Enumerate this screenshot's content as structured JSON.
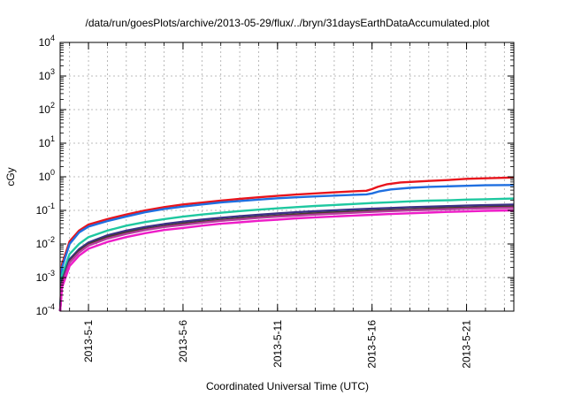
{
  "chart_data": {
    "type": "line",
    "title": "/data/run/goesPlots/archive/2013-05-29/flux/../bryn/31daysEarthDataAccumulated.plot",
    "xlabel": "Coordinated Universal Time (UTC)",
    "ylabel": "cGy",
    "y_scale": "log",
    "ylim": [
      0.0001,
      10000
    ],
    "xlim": [
      -1.5,
      22.5
    ],
    "x_origin_label": "2013-5-1",
    "y_ticks": [
      {
        "value": 0.0001,
        "base": "10",
        "exp": "-4"
      },
      {
        "value": 0.001,
        "base": "10",
        "exp": "-3"
      },
      {
        "value": 0.01,
        "base": "10",
        "exp": "-2"
      },
      {
        "value": 0.1,
        "base": "10",
        "exp": "-1"
      },
      {
        "value": 1,
        "base": "10",
        "exp": "0"
      },
      {
        "value": 10,
        "base": "10",
        "exp": "1"
      },
      {
        "value": 100,
        "base": "10",
        "exp": "2"
      },
      {
        "value": 1000,
        "base": "10",
        "exp": "3"
      },
      {
        "value": 10000,
        "base": "10",
        "exp": "4"
      }
    ],
    "x_ticks": [
      {
        "value": 0,
        "label": "2013-5-1"
      },
      {
        "value": 5,
        "label": "2013-5-6"
      },
      {
        "value": 10,
        "label": "2013-5-11"
      },
      {
        "value": 15,
        "label": "2013-5-16"
      },
      {
        "value": 20,
        "label": "2013-5-21"
      }
    ],
    "grid": true,
    "legend": "none",
    "series": [
      {
        "color": "#e8141c",
        "values": [
          [
            -1.5,
            0.0001
          ],
          [
            -1.4,
            0.0025
          ],
          [
            -1.0,
            0.012
          ],
          [
            -0.5,
            0.025
          ],
          [
            0,
            0.038
          ],
          [
            1,
            0.055
          ],
          [
            2,
            0.075
          ],
          [
            3,
            0.1
          ],
          [
            4,
            0.125
          ],
          [
            5,
            0.15
          ],
          [
            6,
            0.17
          ],
          [
            7,
            0.195
          ],
          [
            8,
            0.22
          ],
          [
            9,
            0.245
          ],
          [
            10,
            0.27
          ],
          [
            11,
            0.295
          ],
          [
            12,
            0.32
          ],
          [
            13,
            0.345
          ],
          [
            14,
            0.37
          ],
          [
            14.7,
            0.385
          ],
          [
            15,
            0.43
          ],
          [
            15.3,
            0.5
          ],
          [
            15.8,
            0.6
          ],
          [
            16.5,
            0.68
          ],
          [
            18,
            0.75
          ],
          [
            19,
            0.8
          ],
          [
            20,
            0.87
          ],
          [
            21,
            0.9
          ],
          [
            22.5,
            0.95
          ]
        ]
      },
      {
        "color": "#1f6fe0",
        "values": [
          [
            -1.5,
            0.0001
          ],
          [
            -1.4,
            0.002
          ],
          [
            -1.0,
            0.01
          ],
          [
            -0.5,
            0.022
          ],
          [
            0,
            0.033
          ],
          [
            1,
            0.048
          ],
          [
            2,
            0.066
          ],
          [
            3,
            0.088
          ],
          [
            4,
            0.11
          ],
          [
            5,
            0.13
          ],
          [
            6,
            0.15
          ],
          [
            7,
            0.172
          ],
          [
            8,
            0.19
          ],
          [
            9,
            0.21
          ],
          [
            10,
            0.23
          ],
          [
            11,
            0.245
          ],
          [
            12,
            0.26
          ],
          [
            13,
            0.275
          ],
          [
            14,
            0.29
          ],
          [
            14.7,
            0.3
          ],
          [
            15,
            0.32
          ],
          [
            15.4,
            0.37
          ],
          [
            16,
            0.42
          ],
          [
            17,
            0.47
          ],
          [
            18,
            0.5
          ],
          [
            19,
            0.52
          ],
          [
            20,
            0.54
          ],
          [
            21,
            0.56
          ],
          [
            22.5,
            0.57
          ]
        ]
      },
      {
        "color": "#1fc8a0",
        "values": [
          [
            -1.5,
            0.0001
          ],
          [
            -1.4,
            0.0012
          ],
          [
            -1.0,
            0.005
          ],
          [
            -0.5,
            0.01
          ],
          [
            0,
            0.016
          ],
          [
            1,
            0.025
          ],
          [
            2,
            0.035
          ],
          [
            3,
            0.045
          ],
          [
            4,
            0.055
          ],
          [
            5,
            0.065
          ],
          [
            6,
            0.075
          ],
          [
            7,
            0.085
          ],
          [
            8,
            0.095
          ],
          [
            9,
            0.105
          ],
          [
            10,
            0.115
          ],
          [
            11,
            0.125
          ],
          [
            12,
            0.135
          ],
          [
            13,
            0.145
          ],
          [
            14,
            0.155
          ],
          [
            15,
            0.165
          ],
          [
            16,
            0.175
          ],
          [
            17,
            0.185
          ],
          [
            18,
            0.195
          ],
          [
            19,
            0.2
          ],
          [
            20,
            0.21
          ],
          [
            21,
            0.215
          ],
          [
            22.5,
            0.225
          ]
        ]
      },
      {
        "color": "#3a2f86",
        "values": [
          [
            -1.5,
            0.0001
          ],
          [
            -1.4,
            0.0008
          ],
          [
            -1.0,
            0.0035
          ],
          [
            -0.5,
            0.007
          ],
          [
            0,
            0.011
          ],
          [
            1,
            0.018
          ],
          [
            2,
            0.025
          ],
          [
            3,
            0.032
          ],
          [
            4,
            0.039
          ],
          [
            5,
            0.046
          ],
          [
            6,
            0.053
          ],
          [
            7,
            0.06
          ],
          [
            8,
            0.067
          ],
          [
            9,
            0.074
          ],
          [
            10,
            0.081
          ],
          [
            11,
            0.088
          ],
          [
            12,
            0.094
          ],
          [
            13,
            0.1
          ],
          [
            14,
            0.106
          ],
          [
            15,
            0.112
          ],
          [
            16,
            0.118
          ],
          [
            17,
            0.124
          ],
          [
            18,
            0.129
          ],
          [
            19,
            0.134
          ],
          [
            20,
            0.139
          ],
          [
            21,
            0.143
          ],
          [
            22.5,
            0.148
          ]
        ]
      },
      {
        "color": "#4a3a2a",
        "values": [
          [
            -1.5,
            0.0001
          ],
          [
            -1.4,
            0.0007
          ],
          [
            -1.0,
            0.003
          ],
          [
            -0.5,
            0.0062
          ],
          [
            0,
            0.0098
          ],
          [
            1,
            0.016
          ],
          [
            2,
            0.022
          ],
          [
            3,
            0.028
          ],
          [
            4,
            0.034
          ],
          [
            5,
            0.04
          ],
          [
            6,
            0.046
          ],
          [
            7,
            0.052
          ],
          [
            8,
            0.058
          ],
          [
            9,
            0.064
          ],
          [
            10,
            0.07
          ],
          [
            11,
            0.076
          ],
          [
            12,
            0.082
          ],
          [
            13,
            0.087
          ],
          [
            14,
            0.092
          ],
          [
            15,
            0.097
          ],
          [
            16,
            0.102
          ],
          [
            17,
            0.107
          ],
          [
            18,
            0.112
          ],
          [
            19,
            0.117
          ],
          [
            20,
            0.121
          ],
          [
            21,
            0.125
          ],
          [
            22.5,
            0.13
          ]
        ]
      },
      {
        "color": "#b43c9c",
        "values": [
          [
            -1.5,
            0.0001
          ],
          [
            -1.4,
            0.00065
          ],
          [
            -1.0,
            0.0028
          ],
          [
            -0.5,
            0.0056
          ],
          [
            0,
            0.009
          ],
          [
            1,
            0.0145
          ],
          [
            2,
            0.02
          ],
          [
            3,
            0.026
          ],
          [
            4,
            0.032
          ],
          [
            5,
            0.037
          ],
          [
            6,
            0.043
          ],
          [
            7,
            0.049
          ],
          [
            8,
            0.054
          ],
          [
            9,
            0.06
          ],
          [
            10,
            0.065
          ],
          [
            11,
            0.07
          ],
          [
            12,
            0.075
          ],
          [
            13,
            0.08
          ],
          [
            14,
            0.085
          ],
          [
            15,
            0.09
          ],
          [
            16,
            0.095
          ],
          [
            17,
            0.1
          ],
          [
            18,
            0.104
          ],
          [
            19,
            0.108
          ],
          [
            20,
            0.112
          ],
          [
            21,
            0.116
          ],
          [
            22.5,
            0.12
          ]
        ]
      },
      {
        "color": "#ee1cc8",
        "values": [
          [
            -1.5,
            0.0001
          ],
          [
            -1.4,
            0.0005
          ],
          [
            -1.0,
            0.0022
          ],
          [
            -0.5,
            0.0045
          ],
          [
            0,
            0.0072
          ],
          [
            1,
            0.0115
          ],
          [
            2,
            0.016
          ],
          [
            3,
            0.021
          ],
          [
            4,
            0.026
          ],
          [
            5,
            0.03
          ],
          [
            6,
            0.035
          ],
          [
            7,
            0.04
          ],
          [
            8,
            0.044
          ],
          [
            9,
            0.049
          ],
          [
            10,
            0.053
          ],
          [
            11,
            0.058
          ],
          [
            12,
            0.062
          ],
          [
            13,
            0.066
          ],
          [
            14,
            0.07
          ],
          [
            15,
            0.074
          ],
          [
            16,
            0.078
          ],
          [
            17,
            0.082
          ],
          [
            18,
            0.086
          ],
          [
            19,
            0.09
          ],
          [
            20,
            0.093
          ],
          [
            21,
            0.097
          ],
          [
            22.5,
            0.1
          ]
        ]
      }
    ]
  }
}
